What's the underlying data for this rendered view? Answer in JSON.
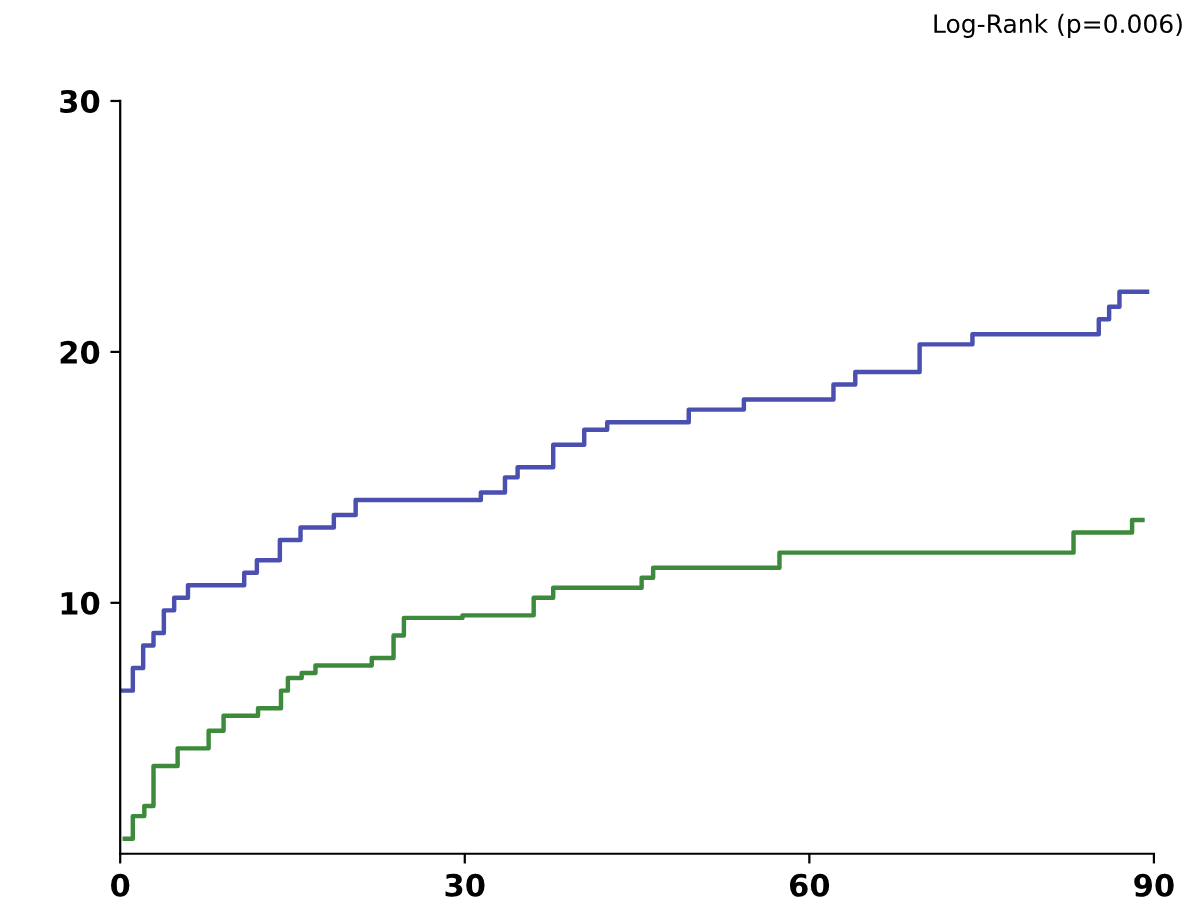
{
  "chart_data": {
    "type": "step",
    "annotations": [
      "Log-Rank (p=0.006)"
    ],
    "xlim": [
      0,
      90
    ],
    "ylim": [
      0,
      30
    ],
    "xticks": [
      0,
      30,
      60,
      90
    ],
    "yticks": [
      10,
      20,
      30
    ],
    "marker": "none",
    "line_style": "solid",
    "series": [
      {
        "color": "#4a4fb0",
        "x": [
          0,
          1.1,
          2,
          2.9,
          3.8,
          4.7,
          5.9,
          10.8,
          11.9,
          13.9,
          15.7,
          18.6,
          20.5,
          31.4,
          33.5,
          34.6,
          37.7,
          40.4,
          42.4,
          49.5,
          54.3,
          62.1,
          64,
          69.6,
          74.2,
          85.2,
          86.1,
          87,
          89.4
        ],
        "values": [
          6.5,
          7.4,
          8.3,
          8.8,
          9.7,
          10.2,
          10.7,
          11.2,
          11.7,
          12.5,
          13.0,
          13.5,
          14.1,
          14.4,
          15.0,
          15.4,
          16.3,
          16.9,
          17.2,
          17.7,
          18.1,
          18.7,
          19.2,
          20.3,
          20.7,
          21.3,
          21.8,
          22.4,
          22.4
        ]
      },
      {
        "color": "#3d8a3d",
        "x": [
          0.4,
          1.1,
          2.1,
          2.9,
          5,
          7.7,
          9,
          12,
          14,
          14.6,
          15.8,
          17,
          21.9,
          23.8,
          24.7,
          29.8,
          36,
          37.7,
          45.4,
          46.4,
          57.4,
          83,
          88.1,
          89
        ],
        "values": [
          0.6,
          1.5,
          1.9,
          3.5,
          4.2,
          4.9,
          5.5,
          5.8,
          6.5,
          7.0,
          7.2,
          7.5,
          7.8,
          8.7,
          9.4,
          9.5,
          10.2,
          10.6,
          11.0,
          11.4,
          12.0,
          12.8,
          13.3,
          13.3
        ]
      }
    ]
  }
}
